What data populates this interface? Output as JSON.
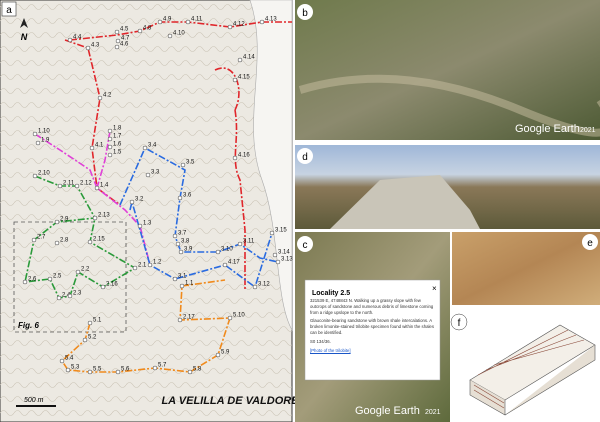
{
  "map": {
    "panel_label": "a",
    "north": "N",
    "scale": "500 m",
    "place": "LA VELILLA DE VALDORÉ",
    "inset": "Fig. 6",
    "localities": [
      "4.4",
      "4.3",
      "4.5",
      "4.7",
      "4.6",
      "4.8",
      "4.9",
      "4.10",
      "4.11",
      "4.12",
      "4.13",
      "4.14",
      "4.15",
      "4.2",
      "4.1",
      "4.16",
      "1.4",
      "1.10",
      "1.9",
      "1.8",
      "1.7",
      "1.6",
      "1.5",
      "1.3",
      "1.2",
      "3.4",
      "3.3",
      "3.5",
      "3.6",
      "3.2",
      "3.7",
      "3.8",
      "3.9",
      "3.10",
      "3.11",
      "3.1",
      "3.12",
      "3.13",
      "3.14",
      "3.15",
      "4.17",
      "2.10",
      "2.11",
      "2.12",
      "2.13",
      "2.9",
      "2.7",
      "2.8",
      "2.15",
      "2.6",
      "2.5",
      "2.4",
      "2.3",
      "2.2",
      "2.16",
      "2.1",
      "2.17",
      "5.1",
      "5.2",
      "5.4",
      "5.3",
      "5.5",
      "5.6",
      "5.7",
      "5.8",
      "5.9",
      "5.10",
      "1.1"
    ]
  },
  "photo_b": {
    "label": "b",
    "credit": "Google Earth",
    "year": "2021"
  },
  "photo_d": {
    "label": "d"
  },
  "photo_c": {
    "label": "c",
    "credit": "Google Earth",
    "year": "2021",
    "popup": {
      "title": "Locality 2.5",
      "text1": "321539 E, 4748843 N. Walking up a grassy slope with few outcrops of sandstone and numerous debris of limestone coming from a ridge upslope to the north.",
      "text2": "Glauconite-bearing sandstone with brown shale intercalations. A broken limonite-stained trilobite specimen found within the shales can be identified.",
      "text3": "S0 134/36.",
      "link": "[Photo of the trilobite]",
      "close": "×"
    }
  },
  "photo_e": {
    "label": "e"
  },
  "photo_f": {
    "label": "f"
  }
}
